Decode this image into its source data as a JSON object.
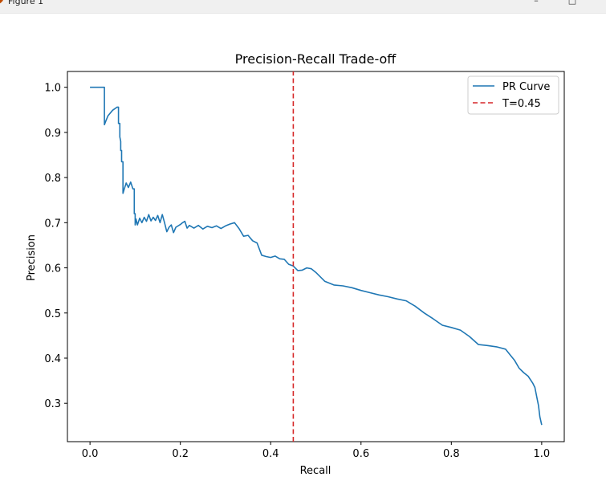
{
  "window": {
    "title": "Figure 1",
    "minimize_glyph": "–",
    "maximize_glyph": "□"
  },
  "chart_data": {
    "type": "line",
    "title": "Precision-Recall Trade-off",
    "xlabel": "Recall",
    "ylabel": "Precision",
    "xlim": [
      -0.05,
      1.05
    ],
    "ylim": [
      0.215,
      1.035
    ],
    "xticks": [
      0.0,
      0.2,
      0.4,
      0.6,
      0.8,
      1.0
    ],
    "xtick_labels": [
      "0.0",
      "0.2",
      "0.4",
      "0.6",
      "0.8",
      "1.0"
    ],
    "yticks": [
      0.3,
      0.4,
      0.5,
      0.6,
      0.7,
      0.8,
      0.9,
      1.0
    ],
    "ytick_labels": [
      "0.3",
      "0.4",
      "0.5",
      "0.6",
      "0.7",
      "0.8",
      "0.9",
      "1.0"
    ],
    "grid": false,
    "legend_position": "top-right",
    "series": [
      {
        "name": "PR Curve",
        "color": "#1f77b4",
        "style": "solid",
        "x": [
          0.0,
          0.032,
          0.032,
          0.035,
          0.04,
          0.05,
          0.06,
          0.063,
          0.063,
          0.066,
          0.066,
          0.068,
          0.068,
          0.07,
          0.07,
          0.073,
          0.073,
          0.076,
          0.08,
          0.085,
          0.09,
          0.095,
          0.098,
          0.098,
          0.1,
          0.1,
          0.102,
          0.105,
          0.11,
          0.115,
          0.12,
          0.125,
          0.13,
          0.135,
          0.14,
          0.145,
          0.15,
          0.155,
          0.16,
          0.165,
          0.17,
          0.175,
          0.18,
          0.185,
          0.19,
          0.2,
          0.205,
          0.21,
          0.215,
          0.22,
          0.23,
          0.24,
          0.25,
          0.26,
          0.27,
          0.28,
          0.29,
          0.3,
          0.31,
          0.32,
          0.33,
          0.34,
          0.35,
          0.36,
          0.37,
          0.38,
          0.39,
          0.4,
          0.41,
          0.42,
          0.43,
          0.44,
          0.45,
          0.46,
          0.47,
          0.48,
          0.49,
          0.5,
          0.52,
          0.54,
          0.56,
          0.58,
          0.6,
          0.62,
          0.64,
          0.66,
          0.68,
          0.7,
          0.72,
          0.74,
          0.76,
          0.78,
          0.8,
          0.82,
          0.84,
          0.86,
          0.88,
          0.9,
          0.92,
          0.94,
          0.95,
          0.96,
          0.97,
          0.98,
          0.985,
          0.99,
          0.993,
          0.996,
          1.0
        ],
        "y": [
          1.0,
          1.0,
          0.917,
          0.925,
          0.937,
          0.949,
          0.956,
          0.956,
          0.92,
          0.92,
          0.89,
          0.88,
          0.86,
          0.86,
          0.835,
          0.835,
          0.765,
          0.775,
          0.788,
          0.778,
          0.79,
          0.775,
          0.775,
          0.72,
          0.72,
          0.695,
          0.708,
          0.695,
          0.71,
          0.7,
          0.712,
          0.703,
          0.718,
          0.704,
          0.712,
          0.705,
          0.716,
          0.7,
          0.718,
          0.7,
          0.68,
          0.69,
          0.695,
          0.678,
          0.69,
          0.696,
          0.7,
          0.703,
          0.688,
          0.694,
          0.688,
          0.694,
          0.686,
          0.692,
          0.689,
          0.693,
          0.687,
          0.693,
          0.697,
          0.7,
          0.687,
          0.67,
          0.672,
          0.66,
          0.655,
          0.628,
          0.625,
          0.623,
          0.626,
          0.62,
          0.619,
          0.608,
          0.604,
          0.594,
          0.595,
          0.6,
          0.598,
          0.59,
          0.57,
          0.562,
          0.56,
          0.556,
          0.55,
          0.545,
          0.54,
          0.536,
          0.531,
          0.527,
          0.515,
          0.5,
          0.487,
          0.473,
          0.468,
          0.462,
          0.448,
          0.43,
          0.428,
          0.425,
          0.42,
          0.395,
          0.378,
          0.368,
          0.36,
          0.345,
          0.335,
          0.31,
          0.295,
          0.27,
          0.252
        ]
      },
      {
        "name": "T=0.45",
        "color": "#d62728",
        "style": "dashed",
        "x": [
          0.45,
          0.45
        ],
        "y": [
          0.215,
          1.035
        ]
      }
    ]
  }
}
